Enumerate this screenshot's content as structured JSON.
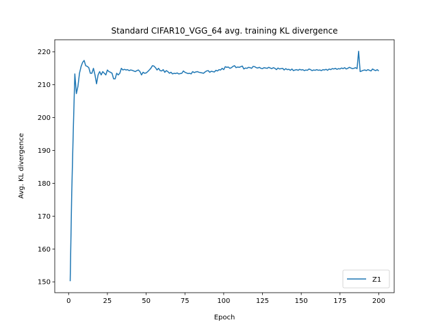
{
  "chart_data": {
    "type": "line",
    "title": "Standard CIFAR10_VGG_64 avg. training KL divergence",
    "x_label": "Epoch",
    "y_label": "Avg. KL divergence",
    "xlim": [
      -8.95,
      209.95
    ],
    "xticks": [
      0,
      25,
      50,
      75,
      100,
      125,
      150,
      175,
      200
    ],
    "ylim": [
      146.7,
      223.7
    ],
    "yticks": [
      150,
      160,
      170,
      180,
      190,
      200,
      210,
      220
    ],
    "legend": "lower right",
    "x": [
      1,
      2,
      3,
      4,
      5,
      6,
      7,
      8,
      9,
      10,
      11,
      12,
      13,
      14,
      15,
      16,
      17,
      18,
      19,
      20,
      21,
      22,
      23,
      24,
      25,
      26,
      27,
      28,
      29,
      30,
      31,
      32,
      33,
      34,
      35,
      36,
      37,
      38,
      39,
      40,
      41,
      42,
      43,
      44,
      45,
      46,
      47,
      48,
      49,
      50,
      51,
      52,
      53,
      54,
      55,
      56,
      57,
      58,
      59,
      60,
      61,
      62,
      63,
      64,
      65,
      66,
      67,
      68,
      69,
      70,
      71,
      72,
      73,
      74,
      75,
      76,
      77,
      78,
      79,
      80,
      81,
      82,
      83,
      84,
      85,
      86,
      87,
      88,
      89,
      90,
      91,
      92,
      93,
      94,
      95,
      96,
      97,
      98,
      99,
      100,
      101,
      102,
      103,
      104,
      105,
      106,
      107,
      108,
      109,
      110,
      111,
      112,
      113,
      114,
      115,
      116,
      117,
      118,
      119,
      120,
      121,
      122,
      123,
      124,
      125,
      126,
      127,
      128,
      129,
      130,
      131,
      132,
      133,
      134,
      135,
      136,
      137,
      138,
      139,
      140,
      141,
      142,
      143,
      144,
      145,
      146,
      147,
      148,
      149,
      150,
      151,
      152,
      153,
      154,
      155,
      156,
      157,
      158,
      159,
      160,
      161,
      162,
      163,
      164,
      165,
      166,
      167,
      168,
      169,
      170,
      171,
      172,
      173,
      174,
      175,
      176,
      177,
      178,
      179,
      180,
      181,
      182,
      183,
      184,
      185,
      186,
      187,
      188,
      189,
      190,
      191,
      192,
      193,
      194,
      195,
      196,
      197,
      198,
      199,
      200
    ],
    "series": [
      {
        "name": "Z1",
        "color": "#1f77b4",
        "values": [
          150.2,
          177.0,
          196.0,
          213.3,
          207.3,
          209.5,
          213.5,
          215.5,
          216.8,
          217.4,
          215.8,
          215.6,
          215.2,
          213.5,
          213.5,
          215.0,
          213.0,
          210.3,
          213.0,
          214.0,
          213.0,
          214.0,
          213.5,
          213.0,
          214.5,
          214.0,
          213.8,
          213.5,
          211.8,
          211.8,
          213.5,
          213.0,
          213.5,
          215.0,
          214.5,
          214.7,
          214.5,
          214.6,
          214.3,
          214.5,
          214.4,
          214.2,
          214.0,
          214.3,
          214.5,
          214.0,
          213.0,
          213.8,
          213.5,
          213.6,
          214.0,
          214.5,
          215.0,
          215.8,
          215.7,
          215.2,
          214.5,
          215.0,
          214.3,
          214.2,
          214.6,
          213.8,
          214.3,
          214.0,
          213.5,
          213.8,
          213.3,
          213.5,
          213.4,
          213.6,
          213.3,
          213.4,
          213.5,
          214.2,
          213.8,
          213.6,
          213.4,
          213.5,
          213.3,
          214.0,
          213.7,
          213.9,
          214.0,
          213.8,
          213.7,
          213.6,
          213.5,
          213.9,
          214.2,
          214.3,
          213.8,
          214.1,
          214.0,
          213.9,
          214.4,
          214.2,
          214.6,
          214.5,
          215.0,
          214.6,
          215.5,
          215.3,
          215.4,
          215.0,
          215.2,
          215.6,
          215.8,
          215.2,
          215.4,
          215.3,
          215.5,
          215.7,
          214.8,
          215.1,
          215.0,
          215.3,
          215.2,
          215.0,
          215.6,
          215.5,
          215.2,
          215.1,
          215.3,
          215.0,
          214.9,
          215.2,
          215.1,
          215.0,
          215.3,
          215.1,
          214.9,
          215.2,
          215.0,
          214.6,
          215.1,
          214.8,
          214.9,
          215.0,
          214.5,
          214.9,
          214.6,
          214.7,
          214.4,
          214.8,
          214.3,
          214.5,
          214.6,
          214.4,
          214.7,
          214.5,
          214.6,
          214.3,
          214.5,
          214.4,
          214.8,
          214.6,
          214.3,
          214.5,
          214.4,
          214.6,
          214.4,
          214.5,
          214.3,
          214.6,
          214.5,
          214.7,
          214.4,
          214.8,
          214.6,
          214.9,
          214.8,
          215.0,
          214.7,
          214.9,
          214.8,
          215.1,
          214.9,
          215.2,
          214.8,
          215.0,
          215.3,
          215.1,
          214.9,
          215.0,
          215.2,
          214.9,
          220.2,
          214.0,
          214.2,
          214.4,
          214.5,
          214.3,
          214.6,
          214.4,
          214.2,
          214.8,
          214.5,
          214.3,
          214.6,
          214.2
        ]
      }
    ]
  }
}
